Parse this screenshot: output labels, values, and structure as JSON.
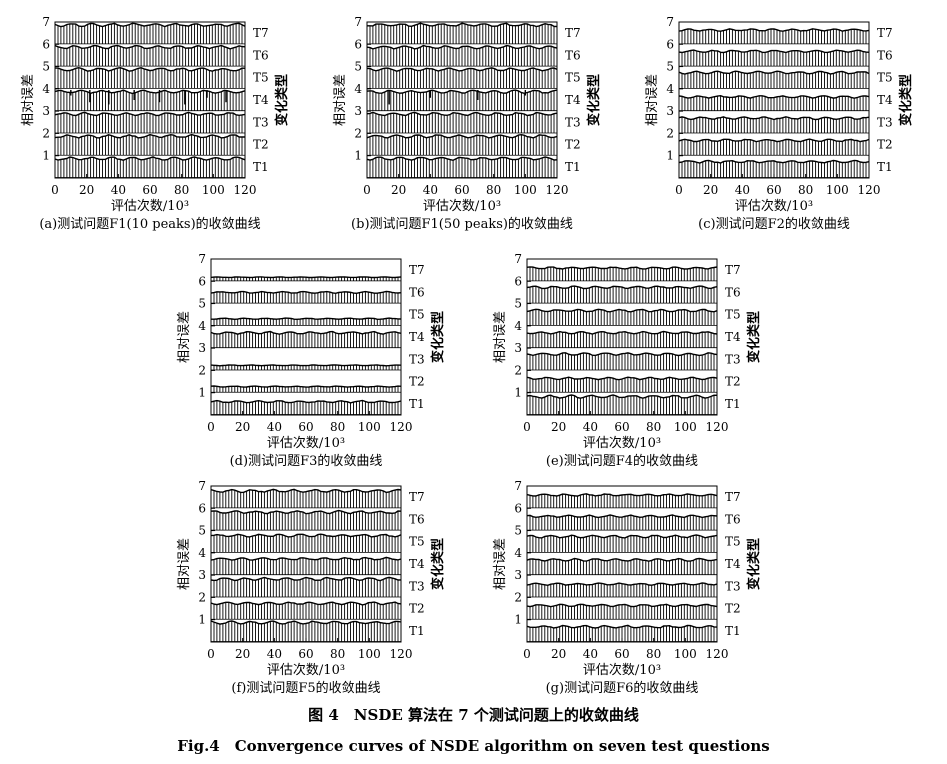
{
  "figure": {
    "caption_cn": "图 4　NSDE 算法在 7 个测试问题上的收敛曲线",
    "caption_en": "Fig.4　Convergence curves of NSDE algorithm on seven test questions"
  },
  "chart_data": [
    {
      "type": "line",
      "subtitle": "(a)测试问题F1(10 peaks)的收敛曲线",
      "xlabel": "评估次数/10³",
      "ylabel": "相对误差",
      "y2label": "变化类型",
      "xlim": [
        0,
        120
      ],
      "ylim": [
        0,
        7
      ],
      "xticks": [
        0,
        20,
        40,
        60,
        80,
        100,
        120
      ],
      "yticks": [
        1,
        2,
        3,
        4,
        5,
        6,
        7
      ],
      "series": [
        {
          "name": "T1",
          "base": 0,
          "top": 0.95,
          "spikes": []
        },
        {
          "name": "T2",
          "base": 1,
          "top": 1.95,
          "spikes": []
        },
        {
          "name": "T3",
          "base": 2,
          "top": 2.95,
          "spikes": []
        },
        {
          "name": "T4",
          "base": 3,
          "top": 3.95,
          "spikes": [
            {
              "x": 10,
              "y": 3.7
            },
            {
              "x": 22,
              "y": 3.4
            },
            {
              "x": 34,
              "y": 3.3
            },
            {
              "x": 50,
              "y": 3.5
            },
            {
              "x": 66,
              "y": 3.4
            },
            {
              "x": 82,
              "y": 3.3
            },
            {
              "x": 96,
              "y": 3.6
            },
            {
              "x": 108,
              "y": 3.4
            }
          ]
        },
        {
          "name": "T5",
          "base": 4,
          "top": 4.95,
          "spikes": []
        },
        {
          "name": "T6",
          "base": 5,
          "top": 5.95,
          "spikes": []
        },
        {
          "name": "T7",
          "base": 6,
          "top": 6.95,
          "spikes": []
        }
      ]
    },
    {
      "type": "line",
      "subtitle": "(b)测试问题F1(50 peaks)的收敛曲线",
      "xlabel": "评估次数/10³",
      "ylabel": "相对误差",
      "y2label": "变化类型",
      "xlim": [
        0,
        120
      ],
      "ylim": [
        0,
        7
      ],
      "xticks": [
        0,
        20,
        40,
        60,
        80,
        100,
        120
      ],
      "yticks": [
        1,
        2,
        3,
        4,
        5,
        6,
        7
      ],
      "series": [
        {
          "name": "T1",
          "base": 0,
          "top": 0.95,
          "spikes": []
        },
        {
          "name": "T2",
          "base": 1,
          "top": 1.95,
          "spikes": []
        },
        {
          "name": "T3",
          "base": 2,
          "top": 2.95,
          "spikes": []
        },
        {
          "name": "T4",
          "base": 3,
          "top": 3.95,
          "spikes": [
            {
              "x": 14,
              "y": 3.3
            },
            {
              "x": 40,
              "y": 3.6
            },
            {
              "x": 70,
              "y": 3.5
            },
            {
              "x": 100,
              "y": 3.7
            }
          ]
        },
        {
          "name": "T5",
          "base": 4,
          "top": 4.95,
          "spikes": []
        },
        {
          "name": "T6",
          "base": 5,
          "top": 5.95,
          "spikes": []
        },
        {
          "name": "T7",
          "base": 6,
          "top": 6.95,
          "spikes": []
        }
      ]
    },
    {
      "type": "line",
      "subtitle": "(c)测试问题F2的收敛曲线",
      "xlabel": "评估次数/10³",
      "ylabel": "相对误差",
      "y2label": "变化类型",
      "xlim": [
        0,
        120
      ],
      "ylim": [
        0,
        7
      ],
      "xticks": [
        0,
        20,
        40,
        60,
        80,
        100,
        120
      ],
      "yticks": [
        1,
        2,
        3,
        4,
        5,
        6,
        7
      ],
      "series": [
        {
          "name": "T1",
          "base": 0,
          "top": 0.8,
          "spikes": []
        },
        {
          "name": "T2",
          "base": 1,
          "top": 1.75,
          "spikes": []
        },
        {
          "name": "T3",
          "base": 2,
          "top": 2.75,
          "spikes": []
        },
        {
          "name": "T4",
          "base": 3,
          "top": 3.7,
          "spikes": []
        },
        {
          "name": "T5",
          "base": 4,
          "top": 4.8,
          "spikes": []
        },
        {
          "name": "T6",
          "base": 5,
          "top": 5.75,
          "spikes": []
        },
        {
          "name": "T7",
          "base": 6,
          "top": 6.7,
          "spikes": []
        }
      ]
    },
    {
      "type": "line",
      "subtitle": "(d)测试问题F3的收敛曲线",
      "xlabel": "评估次数/10³",
      "ylabel": "相对误差",
      "y2label": "变化类型",
      "xlim": [
        0,
        120
      ],
      "ylim": [
        0,
        7
      ],
      "xticks": [
        0,
        20,
        40,
        60,
        80,
        100,
        120
      ],
      "yticks": [
        1,
        2,
        3,
        4,
        5,
        6,
        7
      ],
      "series": [
        {
          "name": "T1",
          "base": 0,
          "top": 0.65,
          "spikes": []
        },
        {
          "name": "T2",
          "base": 1,
          "top": 1.3,
          "spikes": []
        },
        {
          "name": "T3",
          "base": 2,
          "top": 2.25,
          "spikes": []
        },
        {
          "name": "T4",
          "base": 3,
          "top": 3.75,
          "spikes": []
        },
        {
          "name": "T5",
          "base": 4,
          "top": 4.35,
          "spikes": []
        },
        {
          "name": "T6",
          "base": 5,
          "top": 5.55,
          "spikes": []
        },
        {
          "name": "T7",
          "base": 6,
          "top": 6.2,
          "spikes": []
        }
      ]
    },
    {
      "type": "line",
      "subtitle": "(e)测试问题F4的收敛曲线",
      "xlabel": "评估次数/10³",
      "ylabel": "相对误差",
      "y2label": "变化类型",
      "xlim": [
        0,
        120
      ],
      "ylim": [
        0,
        7
      ],
      "xticks": [
        0,
        20,
        40,
        60,
        80,
        100,
        120
      ],
      "yticks": [
        1,
        2,
        3,
        4,
        5,
        6,
        7
      ],
      "series": [
        {
          "name": "T1",
          "base": 0,
          "top": 0.9,
          "spikes": []
        },
        {
          "name": "T2",
          "base": 1,
          "top": 1.7,
          "spikes": []
        },
        {
          "name": "T3",
          "base": 2,
          "top": 2.8,
          "spikes": []
        },
        {
          "name": "T4",
          "base": 3,
          "top": 3.75,
          "spikes": []
        },
        {
          "name": "T5",
          "base": 4,
          "top": 4.75,
          "spikes": []
        },
        {
          "name": "T6",
          "base": 5,
          "top": 5.8,
          "spikes": []
        },
        {
          "name": "T7",
          "base": 6,
          "top": 6.65,
          "spikes": []
        }
      ]
    },
    {
      "type": "line",
      "subtitle": "(f)测试问题F5的收敛曲线",
      "xlabel": "评估次数/10³",
      "ylabel": "相对误差",
      "y2label": "变化类型",
      "xlim": [
        0,
        120
      ],
      "ylim": [
        0,
        7
      ],
      "xticks": [
        0,
        20,
        40,
        60,
        80,
        100,
        120
      ],
      "yticks": [
        1,
        2,
        3,
        4,
        5,
        6,
        7
      ],
      "series": [
        {
          "name": "T1",
          "base": 0,
          "top": 0.95,
          "spikes": []
        },
        {
          "name": "T2",
          "base": 1,
          "top": 1.8,
          "spikes": []
        },
        {
          "name": "T3",
          "base": 2,
          "top": 2.9,
          "spikes": []
        },
        {
          "name": "T4",
          "base": 3,
          "top": 3.8,
          "spikes": []
        },
        {
          "name": "T5",
          "base": 4,
          "top": 4.85,
          "spikes": []
        },
        {
          "name": "T6",
          "base": 5,
          "top": 5.9,
          "spikes": []
        },
        {
          "name": "T7",
          "base": 6,
          "top": 6.85,
          "spikes": []
        }
      ]
    },
    {
      "type": "line",
      "subtitle": "(g)测试问题F6的收敛曲线",
      "xlabel": "评估次数/10³",
      "ylabel": "相对误差",
      "y2label": "变化类型",
      "xlim": [
        0,
        120
      ],
      "ylim": [
        0,
        7
      ],
      "xticks": [
        0,
        20,
        40,
        60,
        80,
        100,
        120
      ],
      "yticks": [
        1,
        2,
        3,
        4,
        5,
        6,
        7
      ],
      "series": [
        {
          "name": "T1",
          "base": 0,
          "top": 0.75,
          "spikes": []
        },
        {
          "name": "T2",
          "base": 1,
          "top": 1.7,
          "spikes": []
        },
        {
          "name": "T3",
          "base": 2,
          "top": 2.65,
          "spikes": []
        },
        {
          "name": "T4",
          "base": 3,
          "top": 3.75,
          "spikes": []
        },
        {
          "name": "T5",
          "base": 4,
          "top": 4.8,
          "spikes": []
        },
        {
          "name": "T6",
          "base": 5,
          "top": 5.7,
          "spikes": []
        },
        {
          "name": "T7",
          "base": 6,
          "top": 6.65,
          "spikes": []
        }
      ]
    }
  ]
}
